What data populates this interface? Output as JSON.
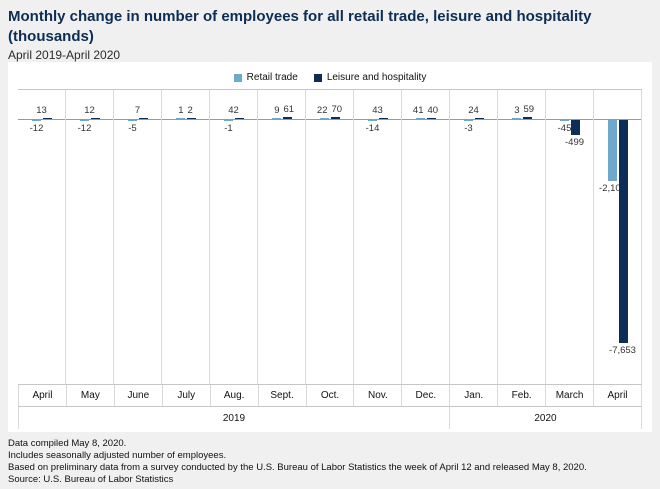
{
  "header": {
    "title": "Monthly change in number of employees for all retail trade, leisure and hospitality (thousands)",
    "subtitle": "April 2019-April 2020"
  },
  "legend": {
    "items": [
      {
        "label": "Retail trade",
        "color": "#6fa8cc"
      },
      {
        "label": "Leisure and hospitality",
        "color": "#0c2d57"
      }
    ]
  },
  "chart_data": {
    "type": "bar",
    "title": "Monthly change in number of employees for all retail trade, leisure and hospitality (thousands)",
    "subtitle": "April 2019-April 2020",
    "categories": [
      "April",
      "May",
      "June",
      "July",
      "Aug.",
      "Sept.",
      "Oct.",
      "Nov.",
      "Dec.",
      "Jan.",
      "Feb.",
      "March",
      "April"
    ],
    "year_groups": [
      {
        "label": "2019",
        "span": 9
      },
      {
        "label": "2020",
        "span": 4
      }
    ],
    "series": [
      {
        "name": "Retail trade",
        "color": "#6fa8cc",
        "values": [
          -12,
          -12,
          -5,
          1,
          -1,
          9,
          22,
          -14,
          41,
          -3,
          3,
          -45,
          -2107
        ]
      },
      {
        "name": "Leisure and hospitality",
        "color": "#0c2d57",
        "values": [
          13,
          12,
          7,
          2,
          42,
          61,
          70,
          43,
          40,
          24,
          59,
          -499,
          -7653
        ]
      }
    ],
    "ylim": [
      -7653,
      70
    ],
    "grid": "vertical-column-separators",
    "legend_position": "top",
    "value_labels": "shown"
  },
  "footer": {
    "lines": [
      "Data compiled May 8, 2020.",
      "Includes seasonally adjusted number of employees.",
      "Based on preliminary data from a survey conducted by the U.S. Bureau of Labor Statistics the week of April 12 and released May 8, 2020.",
      "Source: U.S. Bureau of Labor Statistics"
    ]
  },
  "colors": {
    "background": "#f0f0f1",
    "panel": "#ffffff",
    "title_navy": "#0d2d52",
    "retail_blue": "#6fa8cc",
    "leisure_navy": "#0c2d57"
  }
}
